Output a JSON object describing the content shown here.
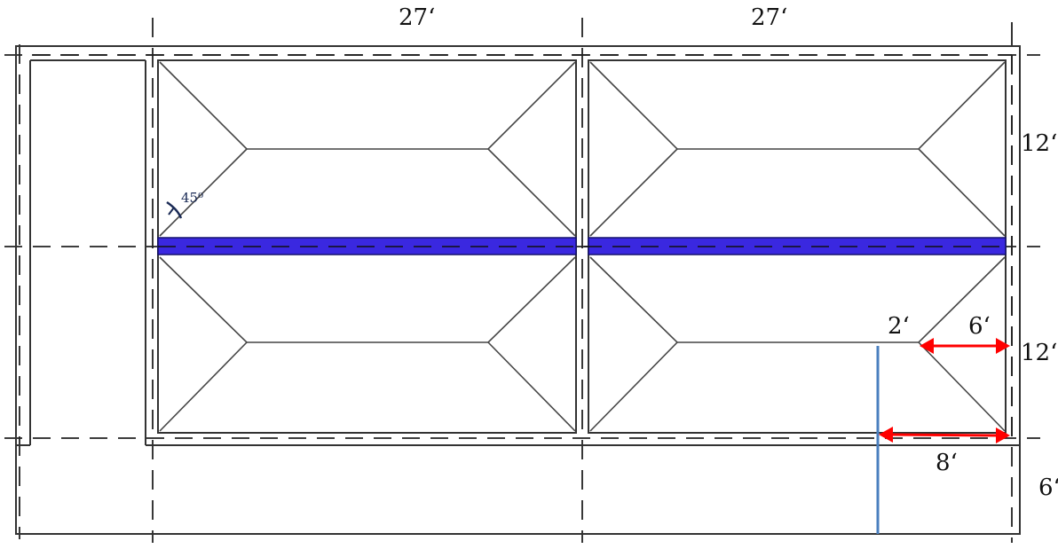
{
  "dimensions": {
    "top_left_span": "27‘",
    "top_right_span": "27‘",
    "right_upper": "12‘",
    "right_lower": "12‘",
    "right_bottom": "6‘",
    "inner_2": "2‘",
    "inner_6": "6‘",
    "inner_8": "8‘"
  },
  "angle_label": "45⁰",
  "colors": {
    "beam": "#3a28e0",
    "beam_edge": "#15126e",
    "arrow": "#ff0000",
    "section_line": "#4a7fbf",
    "angle_mark": "#1a2a55"
  }
}
